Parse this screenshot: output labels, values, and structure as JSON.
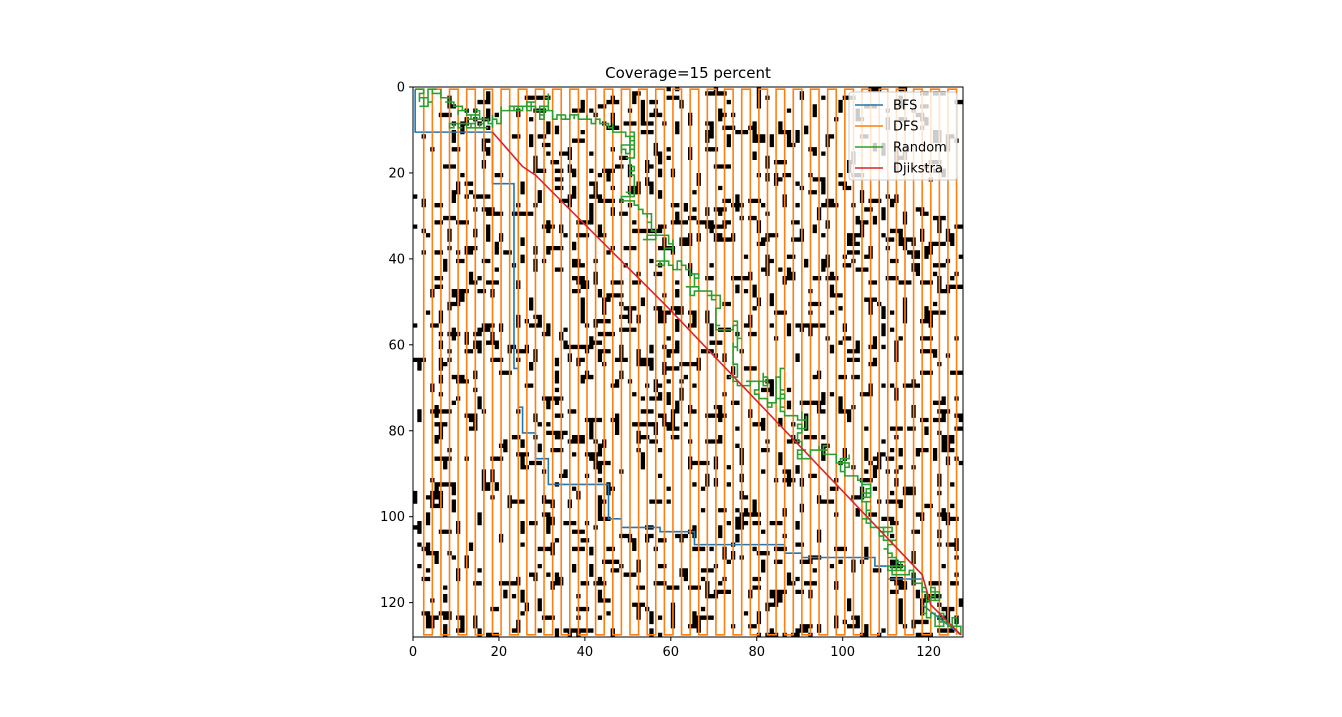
{
  "chart_data": {
    "type": "heatmap",
    "title": "Coverage=15 percent",
    "grid_size": 128,
    "grid": false,
    "xlim": [
      0,
      127
    ],
    "ylim": [
      127,
      0
    ],
    "x_ticks": [
      0,
      20,
      40,
      60,
      80,
      100,
      120
    ],
    "y_ticks": [
      0,
      20,
      40,
      60,
      80,
      100,
      120
    ],
    "obstacle_color": "#000000",
    "free_color": "#ffffff",
    "legend_position": "upper-right",
    "series": [
      {
        "name": "BFS",
        "color": "#1f77b4",
        "x": [
          0,
          0,
          18,
          18,
          23,
          23,
          24,
          24,
          25,
          25,
          28,
          28,
          31,
          31,
          45,
          45,
          48,
          48,
          57,
          57,
          65,
          65,
          69,
          69,
          86,
          86,
          90,
          90,
          107,
          107,
          110,
          110,
          118,
          118,
          127
        ],
        "y": [
          0,
          10,
          10,
          22,
          22,
          65,
          65,
          74,
          74,
          80,
          80,
          86,
          86,
          92,
          92,
          100,
          100,
          102,
          102,
          103,
          103,
          106,
          106,
          106,
          106,
          108,
          108,
          109,
          109,
          111,
          111,
          114,
          114,
          120,
          127
        ]
      },
      {
        "name": "DFS",
        "color": "#ff7f0e",
        "style": "serpentine",
        "x": [
          0,
          2,
          4,
          6,
          8,
          10,
          12,
          14,
          16,
          18,
          20,
          22,
          24,
          26,
          28,
          30,
          32,
          34,
          36,
          38,
          40,
          42,
          44,
          46,
          48,
          50,
          52,
          54,
          56,
          58,
          60,
          62,
          64,
          66,
          68,
          70,
          72,
          74,
          76,
          78,
          80,
          82,
          84,
          86,
          88,
          90,
          92,
          94,
          96,
          98,
          100,
          102,
          104,
          106,
          108,
          110,
          112,
          114,
          116,
          118,
          120,
          122,
          124,
          126
        ],
        "y": [
          0,
          127,
          0,
          127,
          0,
          127,
          0,
          127,
          0,
          127,
          0,
          127,
          0,
          127,
          0,
          127,
          0,
          127,
          0,
          127,
          0,
          127,
          0,
          127,
          0,
          127,
          0,
          127,
          0,
          127,
          0,
          127,
          0,
          127,
          0,
          127,
          0,
          127,
          0,
          127,
          0,
          127,
          0,
          127,
          0,
          127,
          0,
          127,
          0,
          127,
          0,
          127,
          0,
          127,
          0,
          127,
          0,
          127,
          0,
          127,
          0,
          127,
          0,
          127
        ]
      },
      {
        "name": "Random",
        "color": "#2ca02c",
        "style": "random-walk",
        "x": [
          0,
          10,
          20,
          30,
          40,
          50,
          55,
          60,
          65,
          70,
          75,
          80,
          85,
          90,
          95,
          100,
          105,
          110,
          115,
          120,
          125,
          127
        ],
        "y": [
          0,
          5,
          8,
          4,
          6,
          20,
          35,
          42,
          48,
          55,
          60,
          68,
          75,
          80,
          85,
          90,
          98,
          105,
          112,
          118,
          124,
          127
        ]
      },
      {
        "name": "Djikstra",
        "color": "#d62728",
        "x": [
          18,
          25,
          28,
          57,
          59,
          118,
          120,
          127
        ],
        "y": [
          10,
          18,
          20,
          49,
          51,
          113,
          120,
          127
        ]
      }
    ]
  }
}
